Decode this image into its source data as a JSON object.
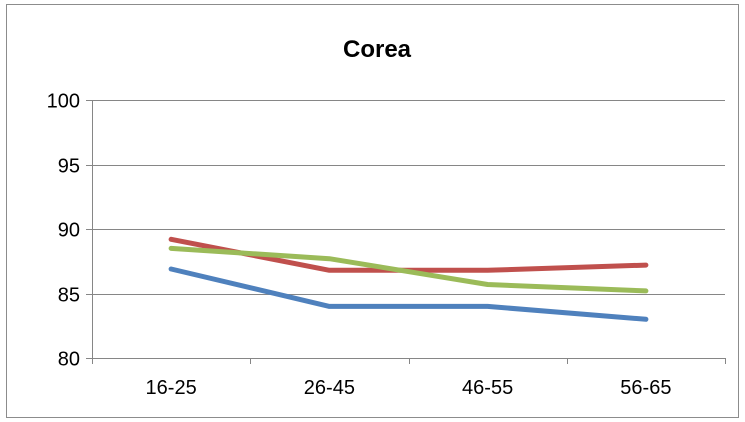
{
  "chart_data": {
    "type": "line",
    "title": "Corea",
    "xlabel": "",
    "ylabel": "",
    "categories": [
      "16-25",
      "26-45",
      "46-55",
      "56-65"
    ],
    "ylim": [
      80,
      100
    ],
    "yticks": [
      80,
      85,
      90,
      95,
      100
    ],
    "grid": true,
    "legend": "none",
    "series": [
      {
        "color": "#4F81BD",
        "values": [
          86.9,
          84.0,
          84.0,
          83.0
        ]
      },
      {
        "color": "#C0504D",
        "values": [
          89.2,
          86.8,
          86.8,
          87.2
        ]
      },
      {
        "color": "#9BBB59",
        "values": [
          88.5,
          87.7,
          85.7,
          85.2
        ]
      }
    ]
  }
}
